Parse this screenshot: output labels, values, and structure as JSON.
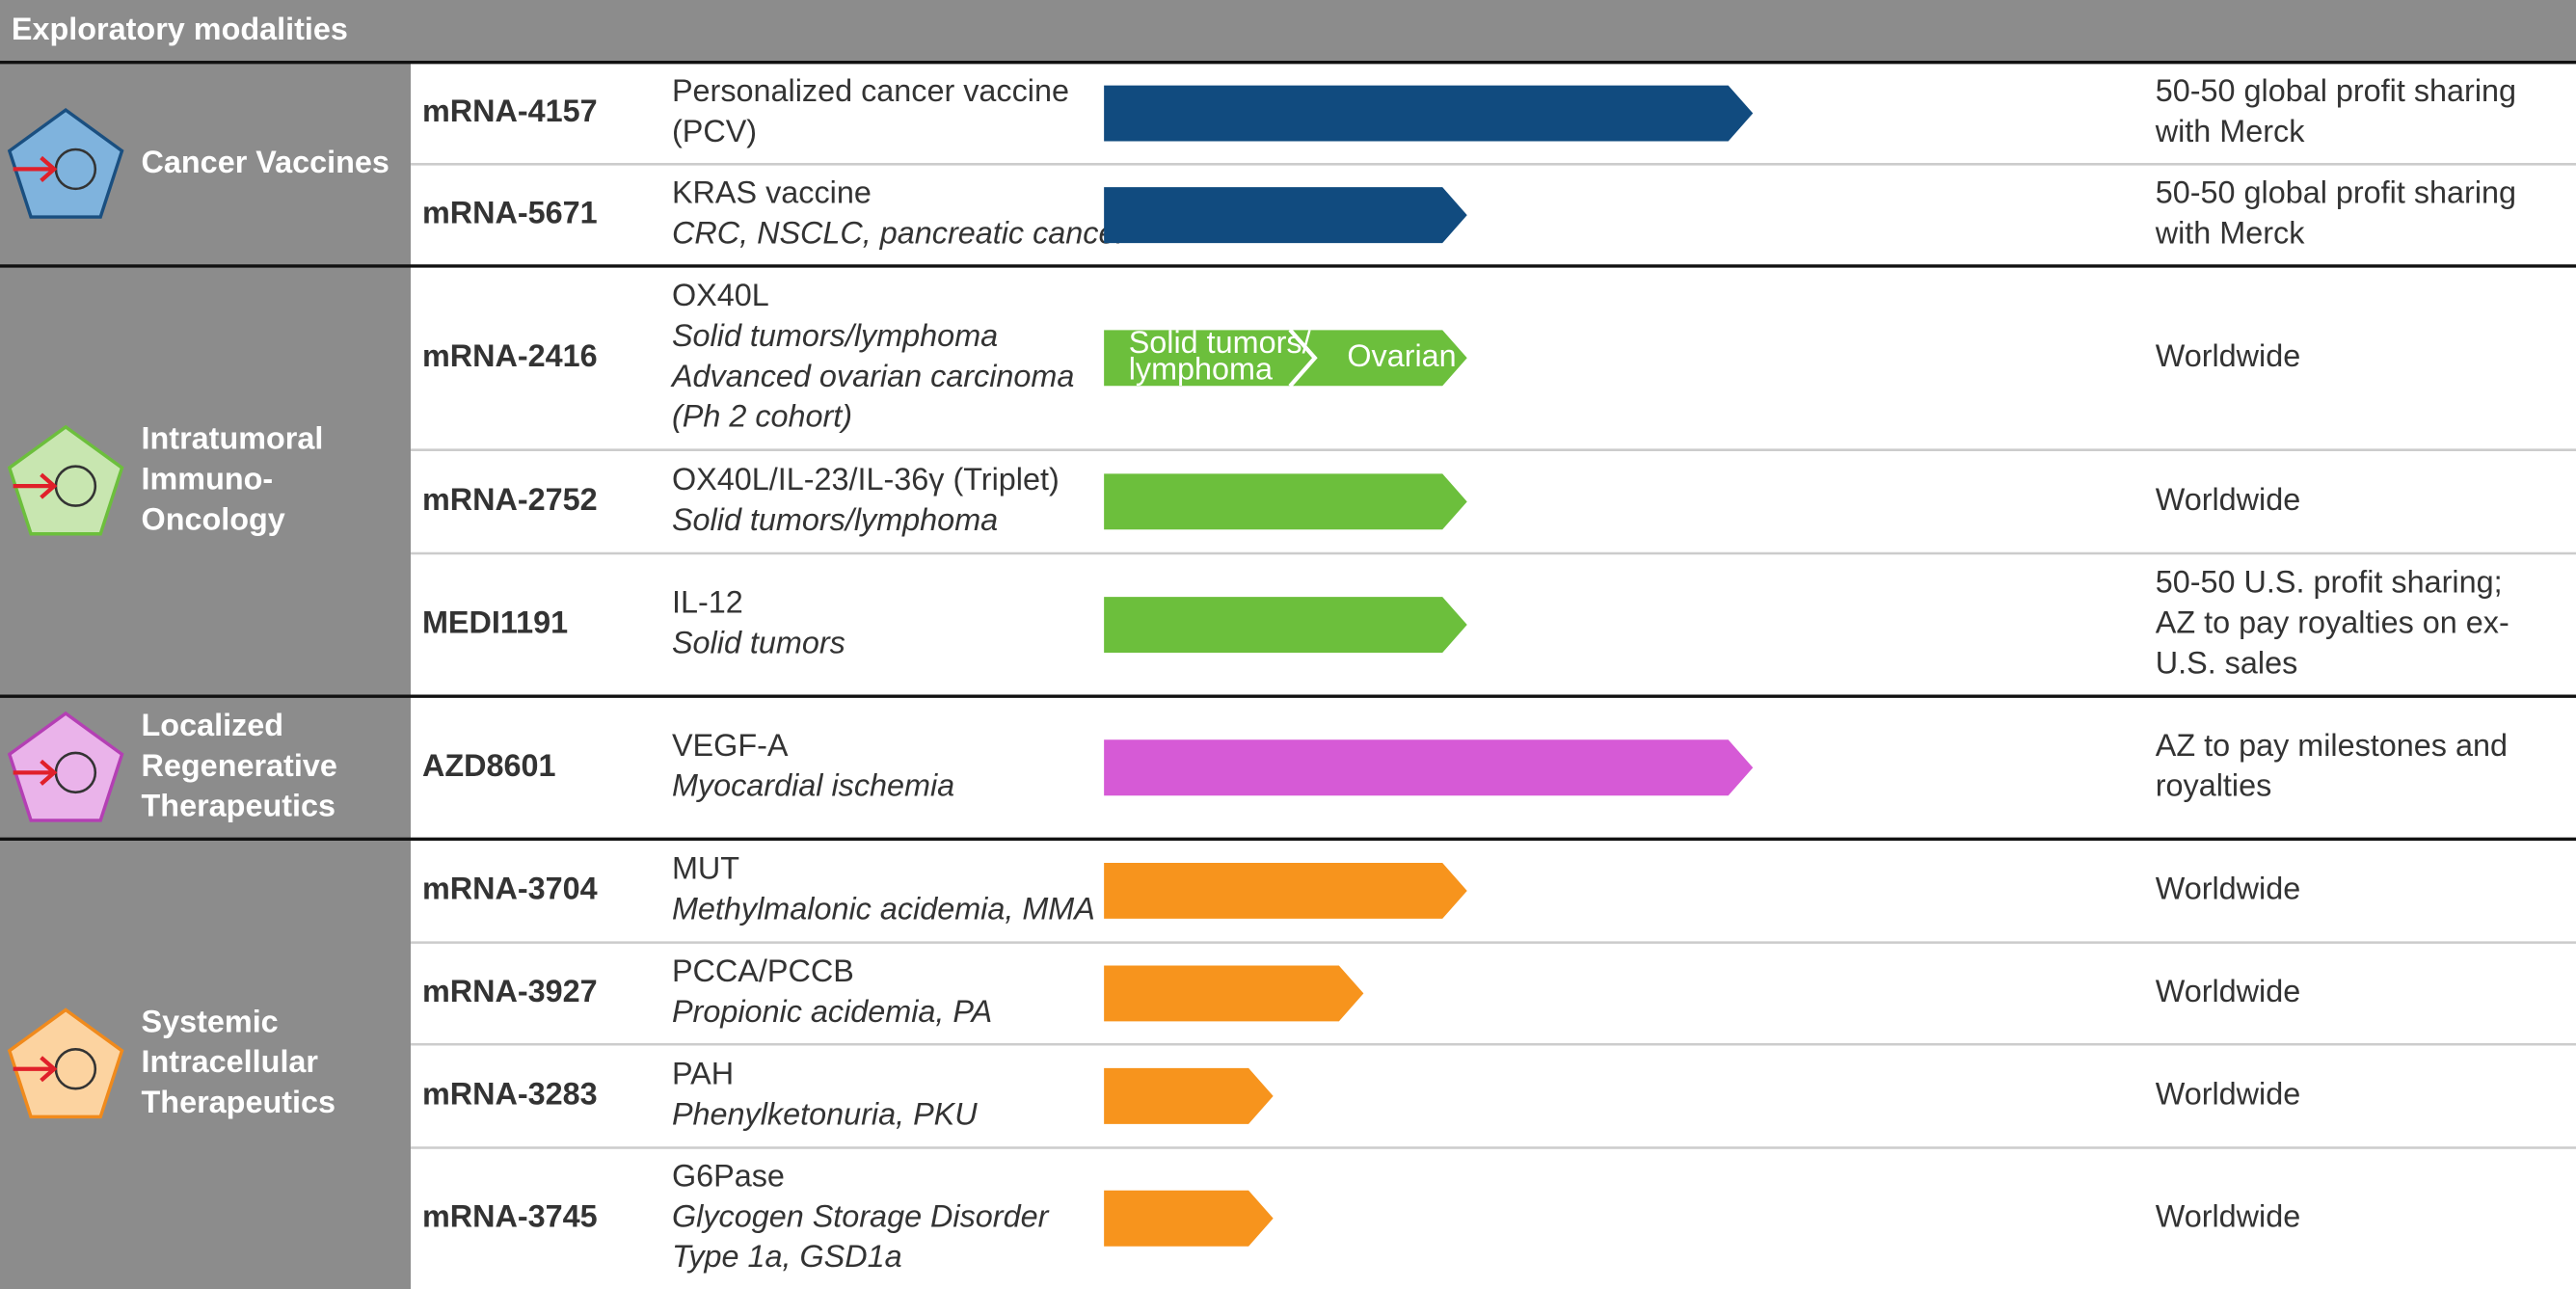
{
  "header": {
    "title": "Exploratory modalities"
  },
  "groups": [
    {
      "name": [
        "Cancer Vaccines"
      ],
      "rows": [
        {
          "id": "mRNA-4157",
          "target": [
            "Personalized cancer vaccine",
            "(PCV)"
          ],
          "indication": [],
          "partner": [
            "50-50 global profit sharing",
            "with Merck"
          ]
        },
        {
          "id": "mRNA-5671",
          "target": [
            "KRAS vaccine"
          ],
          "indication": [
            "CRC, NSCLC, pancreatic cancer"
          ],
          "partner": [
            "50-50 global profit sharing",
            "with Merck"
          ]
        }
      ]
    },
    {
      "name": [
        "Intratumoral",
        "Immuno-",
        "Oncology"
      ],
      "rows": [
        {
          "id": "mRNA-2416",
          "target": [
            "OX40L"
          ],
          "indication": [
            "Solid tumors/lymphoma",
            "Advanced ovarian carcinoma",
            "(Ph 2 cohort)"
          ],
          "partner": [
            "Worldwide"
          ],
          "bar_labels": [
            [
              "Solid tumors/",
              "lymphoma"
            ],
            [
              "Ovarian"
            ]
          ]
        },
        {
          "id": "mRNA-2752",
          "target": [
            "OX40L/IL-23/IL-36γ (Triplet)"
          ],
          "indication": [
            "Solid tumors/lymphoma"
          ],
          "partner": [
            "Worldwide"
          ]
        },
        {
          "id": "MEDI1191",
          "target": [
            "IL-12"
          ],
          "indication": [
            "Solid tumors"
          ],
          "partner": [
            "50-50 U.S. profit sharing;",
            "AZ to pay royalties on ex-",
            "U.S. sales"
          ]
        }
      ]
    },
    {
      "name": [
        "Localized",
        "Regenerative",
        "Therapeutics"
      ],
      "rows": [
        {
          "id": "AZD8601",
          "target": [
            "VEGF-A"
          ],
          "indication": [
            "Myocardial ischemia"
          ],
          "partner": [
            "AZ to pay milestones and",
            "royalties"
          ]
        }
      ]
    },
    {
      "name": [
        "Systemic",
        "Intracellular",
        "Therapeutics"
      ],
      "rows": [
        {
          "id": "mRNA-3704",
          "target": [
            "MUT"
          ],
          "indication": [
            "Methylmalonic acidemia, MMA"
          ],
          "partner": [
            "Worldwide"
          ]
        },
        {
          "id": "mRNA-3927",
          "target": [
            "PCCA/PCCB"
          ],
          "indication": [
            "Propionic acidemia, PA"
          ],
          "partner": [
            "Worldwide"
          ]
        },
        {
          "id": "mRNA-3283",
          "target": [
            "PAH"
          ],
          "indication": [
            "Phenylketonuria, PKU"
          ],
          "partner": [
            "Worldwide"
          ]
        },
        {
          "id": "mRNA-3745",
          "target": [
            "G6Pase"
          ],
          "indication": [
            "Glycogen Storage Disorder",
            "Type 1a, GSD1a"
          ],
          "partner": [
            "Worldwide"
          ]
        }
      ]
    }
  ]
}
